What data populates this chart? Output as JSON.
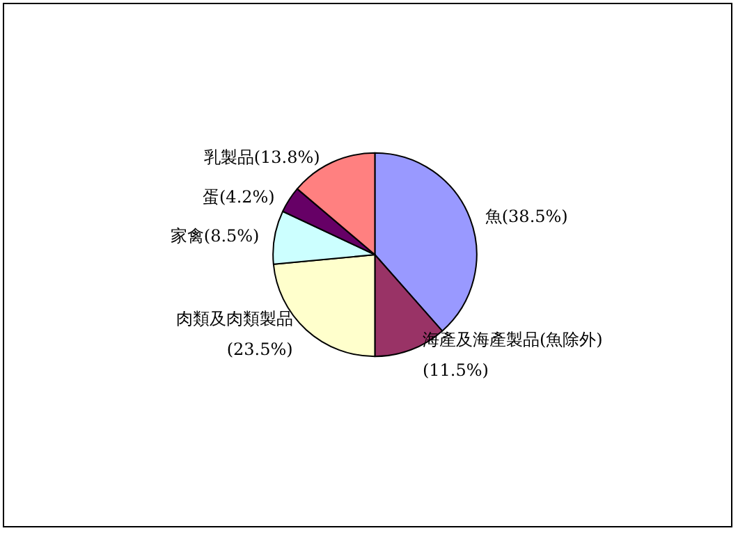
{
  "chart_data": {
    "type": "pie",
    "categories": [
      "魚",
      "海產及海產製品(魚除外)",
      "肉類及肉類製品",
      "家禽",
      "蛋",
      "乳製品"
    ],
    "values": [
      38.5,
      11.5,
      23.5,
      8.5,
      4.2,
      13.8
    ],
    "value_labels": [
      "(38.5%)",
      "(11.5%)",
      "(23.5%)",
      "(8.5%)",
      "(4.2%)",
      "(13.8%)"
    ],
    "colors": [
      "#9999ff",
      "#993366",
      "#ffffcc",
      "#ccffff",
      "#660066",
      "#ff8080"
    ]
  }
}
